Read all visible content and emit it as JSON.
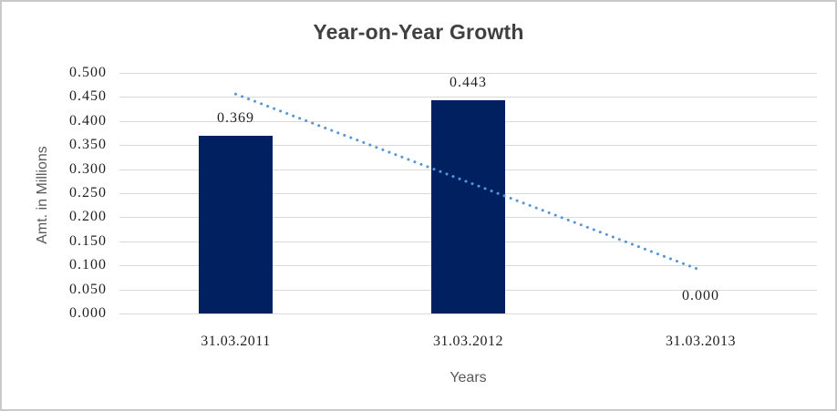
{
  "frame": {
    "background": "#ffffff",
    "border_color": "#c9c9c9"
  },
  "chart_data": {
    "type": "bar",
    "title": "Year-on-Year Growth",
    "xlabel": "Years",
    "ylabel": "Amt. in Millions",
    "categories": [
      "31.03.2011",
      "31.03.2012",
      "31.03.2013"
    ],
    "values": [
      0.369,
      0.443,
      0.0
    ],
    "data_labels": [
      "0.369",
      "0.443",
      "0.000"
    ],
    "ylim": [
      0,
      0.5
    ],
    "ytick_step": 0.05,
    "ytick_labels": [
      "0.500",
      "0.450",
      "0.400",
      "0.350",
      "0.300",
      "0.250",
      "0.200",
      "0.150",
      "0.100",
      "0.050",
      "0.000"
    ],
    "grid": true,
    "legend": "none",
    "trendline": {
      "type": "linear",
      "style": "dotted",
      "color": "#5596d8",
      "start": {
        "category_index": 0,
        "value": 0.456
      },
      "end": {
        "category_index": 2,
        "value": 0.09
      }
    },
    "colors": {
      "bar": "#002060",
      "gridline": "#d9d9d9",
      "title_text": "#404040",
      "axis_title_text": "#595959",
      "tick_text": "#1f1f1f",
      "border": "#c9c9c9"
    }
  }
}
